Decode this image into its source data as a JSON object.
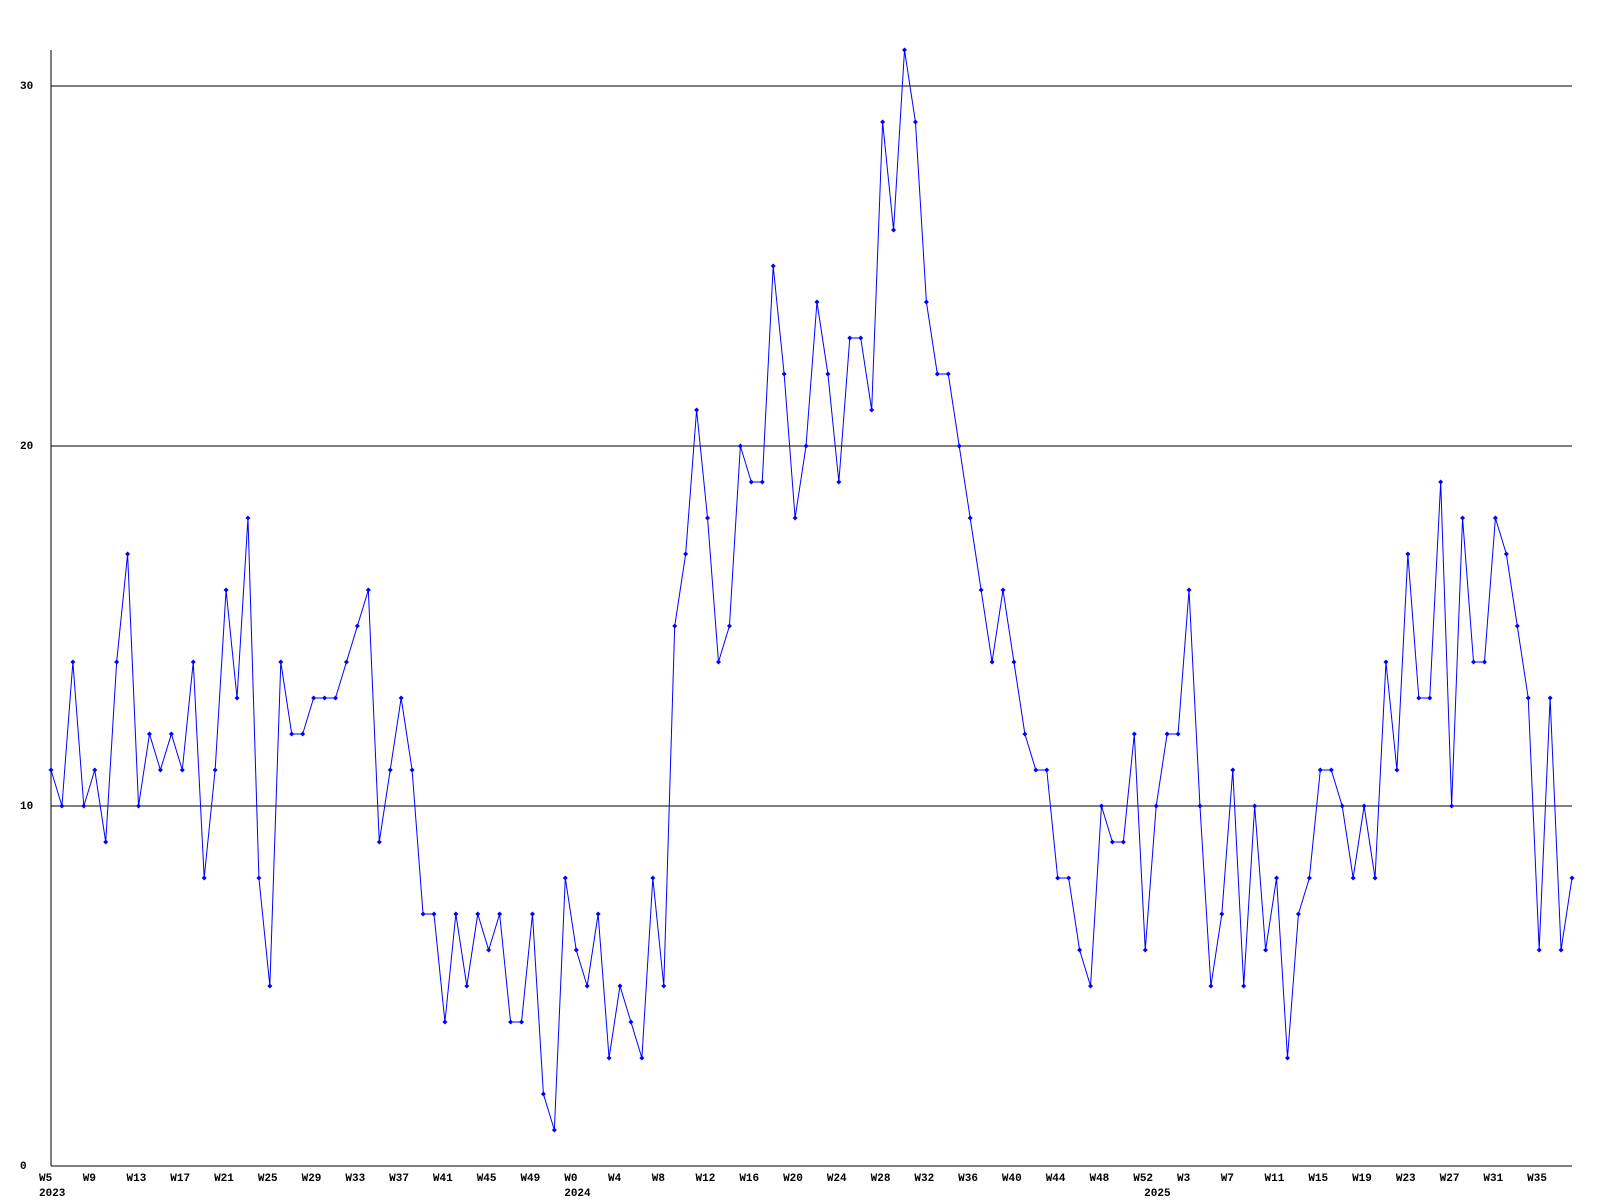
{
  "chart_data": {
    "type": "line",
    "color": "#0000ff",
    "grid": true,
    "marker": "diamond",
    "categories": [
      "W5",
      null,
      null,
      null,
      "W9",
      null,
      null,
      null,
      "W13",
      null,
      null,
      null,
      "W17",
      null,
      null,
      null,
      "W21",
      null,
      null,
      null,
      "W25",
      null,
      null,
      null,
      "W29",
      null,
      null,
      null,
      "W33",
      null,
      null,
      null,
      "W37",
      null,
      null,
      null,
      "W41",
      null,
      null,
      null,
      "W45",
      null,
      null,
      null,
      "W49",
      null,
      null,
      null,
      "W0",
      null,
      null,
      null,
      "W4",
      null,
      null,
      null,
      "W8",
      null,
      null,
      null,
      "W12",
      null,
      null,
      null,
      "W16",
      null,
      null,
      null,
      "W20",
      null,
      null,
      null,
      "W24",
      null,
      null,
      null,
      "W28",
      null,
      null,
      null,
      "W32",
      null,
      null,
      null,
      "W36",
      null,
      null,
      null,
      "W40",
      null,
      null,
      null,
      "W44",
      null,
      null,
      null,
      "W48",
      null,
      null,
      null,
      "W52",
      null,
      null,
      null,
      "W3",
      null,
      null,
      null,
      "W7",
      null,
      null,
      null,
      "W11",
      null,
      null,
      null,
      "W15",
      null,
      null,
      null,
      "W19",
      null,
      null,
      null,
      "W23",
      null,
      null,
      null,
      "W27",
      null,
      null,
      null,
      "W31",
      null,
      null,
      null,
      "W35",
      null,
      null,
      null
    ],
    "year_labels": [
      "2023",
      null,
      null,
      null,
      null,
      null,
      null,
      null,
      null,
      null,
      null,
      null,
      null,
      null,
      null,
      null,
      null,
      null,
      null,
      null,
      null,
      null,
      null,
      null,
      null,
      null,
      null,
      null,
      null,
      null,
      null,
      null,
      null,
      null,
      null,
      null,
      null,
      null,
      null,
      null,
      null,
      null,
      null,
      null,
      null,
      null,
      null,
      null,
      "2024",
      null,
      null,
      null,
      null,
      null,
      null,
      null,
      null,
      null,
      null,
      null,
      null,
      null,
      null,
      null,
      null,
      null,
      null,
      null,
      null,
      null,
      null,
      null,
      null,
      null,
      null,
      null,
      null,
      null,
      null,
      null,
      null,
      null,
      null,
      null,
      null,
      null,
      null,
      null,
      null,
      null,
      null,
      null,
      null,
      null,
      null,
      null,
      null,
      null,
      null,
      null,
      null,
      "2025",
      null,
      null,
      null,
      null,
      null,
      null,
      null,
      null,
      null,
      null,
      null,
      null,
      null,
      null,
      null,
      null,
      null,
      null,
      null,
      null,
      null,
      null,
      null,
      null,
      null,
      null,
      null,
      null,
      null,
      null,
      null,
      null,
      null,
      null,
      null,
      null,
      null,
      null
    ],
    "values": [
      11,
      10,
      14,
      10,
      11,
      9,
      14,
      17,
      10,
      12,
      11,
      12,
      11,
      14,
      8,
      11,
      16,
      13,
      18,
      8,
      5,
      14,
      12,
      12,
      13,
      13,
      13,
      14,
      15,
      16,
      9,
      11,
      13,
      11,
      7,
      7,
      4,
      7,
      5,
      7,
      6,
      7,
      4,
      4,
      7,
      2,
      1,
      8,
      6,
      5,
      7,
      3,
      5,
      4,
      3,
      8,
      5,
      15,
      17,
      21,
      18,
      14,
      15,
      20,
      19,
      19,
      25,
      22,
      18,
      20,
      24,
      22,
      19,
      23,
      23,
      21,
      29,
      26,
      31,
      29,
      24,
      22,
      22,
      20,
      18,
      16,
      14,
      16,
      14,
      12,
      11,
      11,
      8,
      8,
      6,
      5,
      10,
      9,
      9,
      12,
      6,
      10,
      12,
      12,
      16,
      10,
      5,
      7,
      11,
      5,
      10,
      6,
      8,
      3,
      7,
      8,
      11,
      11,
      10,
      8,
      10,
      8,
      14,
      11,
      17,
      13,
      13,
      19,
      10,
      18,
      14,
      14,
      18,
      17,
      15,
      13,
      6,
      13,
      6,
      8
    ],
    "ylim": [
      0,
      31
    ],
    "yticks": [
      0,
      10,
      20,
      30
    ]
  }
}
